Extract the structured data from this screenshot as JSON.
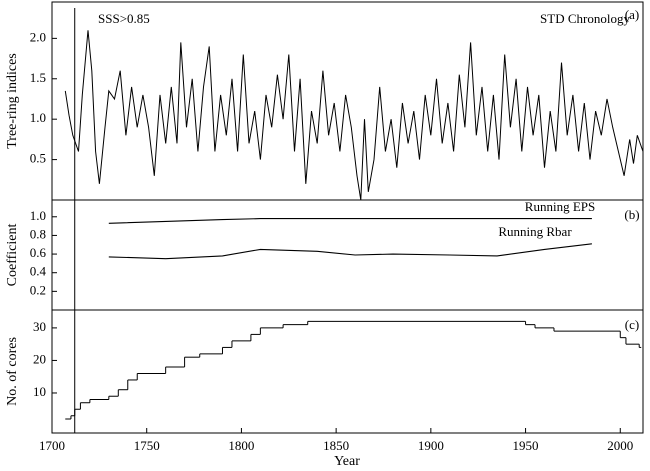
{
  "chart_data": [
    {
      "type": "line",
      "title": "STD Chronology",
      "panel_label": "(a)",
      "y_label": "Tree-ring indices",
      "annotation": {
        "text": "SSS>0.85",
        "x": 1712
      },
      "xlim": [
        1700,
        2012
      ],
      "ylim": [
        0,
        2.45
      ],
      "yticks": [
        0.5,
        {
          "value": 1.0,
          "label": "1.0"
        },
        1.5,
        {
          "value": 2.0,
          "label": "2.0"
        }
      ],
      "color": "#000000",
      "x": [
        1707,
        1709,
        1711,
        1714,
        1716,
        1719,
        1721,
        1723,
        1725,
        1728,
        1730,
        1733,
        1736,
        1739,
        1742,
        1745,
        1748,
        1751,
        1754,
        1757,
        1760,
        1763,
        1766,
        1768,
        1771,
        1774,
        1777,
        1780,
        1783,
        1786,
        1789,
        1792,
        1795,
        1798,
        1801,
        1804,
        1807,
        1810,
        1813,
        1816,
        1819,
        1822,
        1825,
        1828,
        1831,
        1834,
        1837,
        1840,
        1843,
        1846,
        1849,
        1852,
        1855,
        1858,
        1861,
        1863,
        1865,
        1867,
        1870,
        1873,
        1876,
        1879,
        1882,
        1885,
        1888,
        1891,
        1894,
        1897,
        1900,
        1903,
        1906,
        1909,
        1912,
        1915,
        1918,
        1921,
        1924,
        1927,
        1930,
        1933,
        1936,
        1939,
        1942,
        1945,
        1948,
        1951,
        1954,
        1957,
        1960,
        1963,
        1966,
        1969,
        1972,
        1975,
        1978,
        1981,
        1984,
        1987,
        1990,
        1993,
        1996,
        1999,
        2002,
        2005,
        2007,
        2009,
        2012
      ],
      "values": [
        1.35,
        1.05,
        0.8,
        0.6,
        1.3,
        2.1,
        1.6,
        0.6,
        0.2,
        0.9,
        1.35,
        1.25,
        1.6,
        0.8,
        1.4,
        0.9,
        1.3,
        0.9,
        0.3,
        1.3,
        0.7,
        1.4,
        0.7,
        1.95,
        0.9,
        1.5,
        0.6,
        1.4,
        1.9,
        0.6,
        1.3,
        0.8,
        1.5,
        0.6,
        1.8,
        0.7,
        1.1,
        0.5,
        1.3,
        0.9,
        1.55,
        1.0,
        1.8,
        0.6,
        1.5,
        0.2,
        1.1,
        0.7,
        1.6,
        0.8,
        1.2,
        0.6,
        1.3,
        0.9,
        0.3,
        0.0,
        1.0,
        0.1,
        0.5,
        1.4,
        0.6,
        1.0,
        0.4,
        1.2,
        0.7,
        1.1,
        0.5,
        1.3,
        0.8,
        1.5,
        0.7,
        1.2,
        0.6,
        1.55,
        0.9,
        1.95,
        0.8,
        1.4,
        0.6,
        1.3,
        0.5,
        1.8,
        0.9,
        1.5,
        0.6,
        1.4,
        0.8,
        1.3,
        0.4,
        1.1,
        0.6,
        1.7,
        0.8,
        1.3,
        0.6,
        1.2,
        0.5,
        1.1,
        0.8,
        1.25,
        0.9,
        0.6,
        0.3,
        0.75,
        0.45,
        0.8,
        0.6
      ]
    },
    {
      "type": "line",
      "panel_label": "(b)",
      "y_label": "Coefficient",
      "xlim": [
        1700,
        2012
      ],
      "ylim": [
        0,
        1.18
      ],
      "yticks": [
        0.2,
        0.4,
        0.6,
        0.8,
        {
          "value": 1.0,
          "label": "1.0"
        }
      ],
      "x": [
        1730,
        1760,
        1790,
        1810,
        1840,
        1860,
        1880,
        1910,
        1935,
        1960,
        1985
      ],
      "series": [
        {
          "name": "Running EPS",
          "color": "#000000",
          "values": [
            0.93,
            0.95,
            0.97,
            0.98,
            0.98,
            0.98,
            0.98,
            0.98,
            0.98,
            0.98,
            0.98
          ]
        },
        {
          "name": "Running Rbar",
          "color": "#000000",
          "values": [
            0.57,
            0.55,
            0.58,
            0.65,
            0.63,
            0.59,
            0.6,
            0.59,
            0.58,
            0.65,
            0.71
          ]
        }
      ]
    },
    {
      "type": "step",
      "panel_label": "(c)",
      "y_label": "No. of cores",
      "x_label": "Year",
      "xlim": [
        1700,
        2012
      ],
      "ylim": [
        -2.3,
        35.5
      ],
      "xticks": [
        1700,
        1750,
        1800,
        1850,
        1900,
        1950,
        2000
      ],
      "yticks": [
        10,
        20,
        30
      ],
      "color": "#000000",
      "x": [
        1707,
        1710,
        1712,
        1715,
        1720,
        1730,
        1735,
        1740,
        1745,
        1760,
        1770,
        1778,
        1790,
        1795,
        1805,
        1810,
        1822,
        1835,
        1950,
        1955,
        1965,
        2000,
        2003,
        2010
      ],
      "values": [
        2,
        3,
        5,
        7,
        8,
        9,
        11,
        14,
        16,
        18,
        21,
        22,
        24,
        26,
        28,
        30,
        31,
        32,
        31,
        30,
        29,
        27,
        25,
        24
      ]
    }
  ]
}
